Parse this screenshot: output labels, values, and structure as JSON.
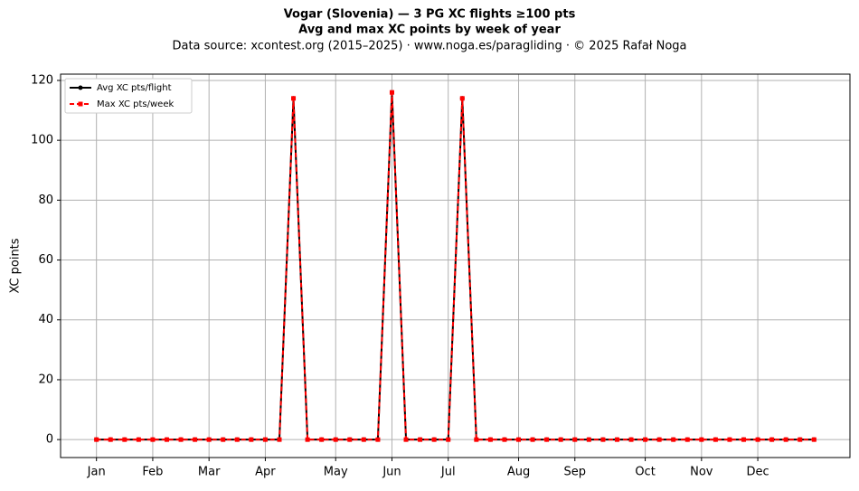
{
  "chart_data": {
    "type": "line",
    "title": "Vogar (Slovenia)  —  3 PG XC flights ≥100 pts",
    "subtitle": "Avg and max XC points by week of year",
    "source": "Data source: xcontest.org (2015–2025)  ·  www.noga.es/paragliding  ·  © 2025 Rafał Noga",
    "y_label": "XC points",
    "x": [
      1,
      2,
      3,
      4,
      5,
      6,
      7,
      8,
      9,
      10,
      11,
      12,
      13,
      14,
      15,
      16,
      17,
      18,
      19,
      20,
      21,
      22,
      23,
      24,
      25,
      26,
      27,
      28,
      29,
      30,
      31,
      32,
      33,
      34,
      35,
      36,
      37,
      38,
      39,
      40,
      41,
      42,
      43,
      44,
      45,
      46,
      47,
      48,
      49,
      50,
      51,
      52
    ],
    "series": [
      {
        "name": "Avg XC pts/flight",
        "color": "#000000",
        "values": [
          0,
          0,
          0,
          0,
          0,
          0,
          0,
          0,
          0,
          0,
          0,
          0,
          0,
          0,
          114,
          0,
          0,
          0,
          0,
          0,
          0,
          116,
          0,
          0,
          0,
          0,
          114,
          0,
          0,
          0,
          0,
          0,
          0,
          0,
          0,
          0,
          0,
          0,
          0,
          0,
          0,
          0,
          0,
          0,
          0,
          0,
          0,
          0,
          0,
          0,
          0,
          0
        ]
      },
      {
        "name": "Max XC pts/week",
        "color": "#ff0000",
        "values": [
          0,
          0,
          0,
          0,
          0,
          0,
          0,
          0,
          0,
          0,
          0,
          0,
          0,
          0,
          114,
          0,
          0,
          0,
          0,
          0,
          0,
          116,
          0,
          0,
          0,
          0,
          114,
          0,
          0,
          0,
          0,
          0,
          0,
          0,
          0,
          0,
          0,
          0,
          0,
          0,
          0,
          0,
          0,
          0,
          0,
          0,
          0,
          0,
          0,
          0,
          0,
          0
        ]
      }
    ],
    "xlim": [
      -1.55,
      54.55
    ],
    "xticks": [
      {
        "value": 1,
        "label": "Jan"
      },
      {
        "value": 5,
        "label": "Feb"
      },
      {
        "value": 9,
        "label": "Mar"
      },
      {
        "value": 13,
        "label": "Apr"
      },
      {
        "value": 18,
        "label": "May"
      },
      {
        "value": 22,
        "label": "Jun"
      },
      {
        "value": 26,
        "label": "Jul"
      },
      {
        "value": 31,
        "label": "Aug"
      },
      {
        "value": 35,
        "label": "Sep"
      },
      {
        "value": 40,
        "label": "Oct"
      },
      {
        "value": 44,
        "label": "Nov"
      },
      {
        "value": 48,
        "label": "Dec"
      }
    ],
    "ylim": [
      -6,
      122.1
    ],
    "yticks": [
      0,
      20,
      40,
      60,
      80,
      100,
      120
    ],
    "grid": true,
    "legend": "upper left"
  }
}
